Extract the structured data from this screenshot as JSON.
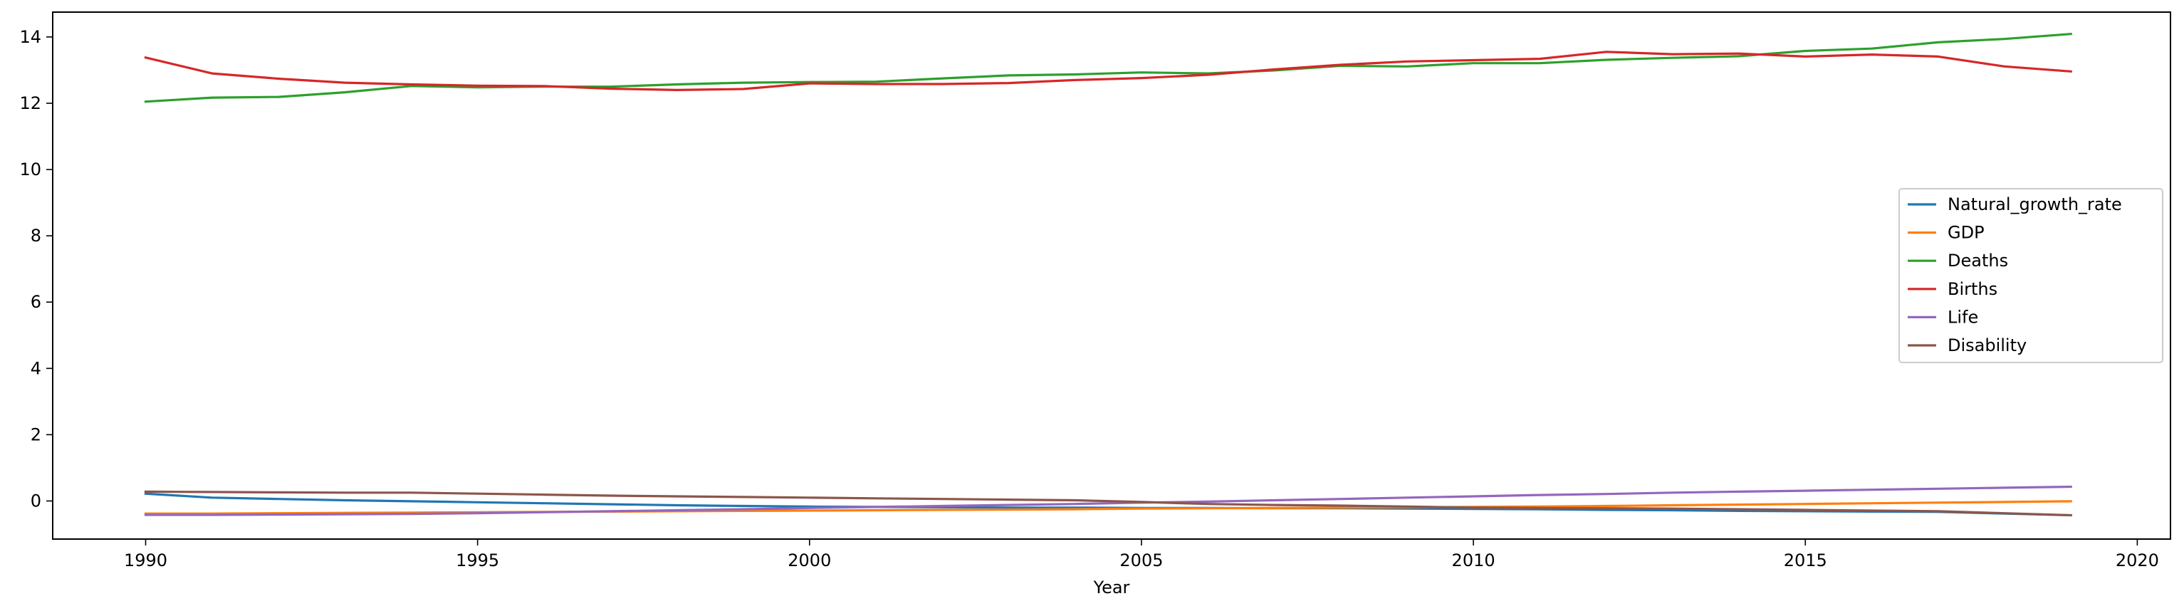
{
  "chart_data": {
    "type": "line",
    "title": "",
    "xlabel": "Year",
    "ylabel": "",
    "xlim": [
      1988.6,
      2020.5
    ],
    "ylim": [
      -1.15,
      14.75
    ],
    "xticks": [
      1990,
      1995,
      2000,
      2005,
      2010,
      2015,
      2020
    ],
    "yticks": [
      0,
      2,
      4,
      6,
      8,
      10,
      12,
      14
    ],
    "grid": false,
    "legend_position": "center-right",
    "x": [
      1990,
      1991,
      1992,
      1993,
      1994,
      1995,
      1996,
      1997,
      1998,
      1999,
      2000,
      2001,
      2002,
      2003,
      2004,
      2005,
      2006,
      2007,
      2008,
      2009,
      2010,
      2011,
      2012,
      2013,
      2014,
      2015,
      2016,
      2017,
      2018,
      2019
    ],
    "series": [
      {
        "name": "Natural_growth_rate",
        "color": "#1f77b4",
        "values": [
          0.22,
          0.1,
          0.06,
          0.02,
          -0.01,
          -0.04,
          -0.07,
          -0.1,
          -0.13,
          -0.15,
          -0.17,
          -0.18,
          -0.19,
          -0.2,
          -0.2,
          -0.21,
          -0.21,
          -0.22,
          -0.22,
          -0.23,
          -0.24,
          -0.25,
          -0.27,
          -0.28,
          -0.3,
          -0.31,
          -0.32,
          -0.33,
          -0.38,
          -0.43
        ]
      },
      {
        "name": "GDP",
        "color": "#ff7f0e",
        "values": [
          -0.38,
          -0.38,
          -0.37,
          -0.36,
          -0.35,
          -0.34,
          -0.33,
          -0.32,
          -0.31,
          -0.3,
          -0.29,
          -0.28,
          -0.27,
          -0.26,
          -0.25,
          -0.23,
          -0.22,
          -0.21,
          -0.2,
          -0.19,
          -0.18,
          -0.17,
          -0.15,
          -0.13,
          -0.11,
          -0.09,
          -0.07,
          -0.05,
          -0.03,
          -0.01
        ]
      },
      {
        "name": "Deaths",
        "color": "#2ca02c",
        "values": [
          12.05,
          12.17,
          12.19,
          12.33,
          12.52,
          12.48,
          12.5,
          12.5,
          12.57,
          12.62,
          12.64,
          12.65,
          12.75,
          12.84,
          12.87,
          12.93,
          12.9,
          12.99,
          13.13,
          13.11,
          13.21,
          13.21,
          13.31,
          13.37,
          13.42,
          13.58,
          13.65,
          13.84,
          13.94,
          14.09
        ]
      },
      {
        "name": "Births",
        "color": "#d62728",
        "values": [
          13.38,
          12.9,
          12.74,
          12.62,
          12.57,
          12.53,
          12.52,
          12.44,
          12.4,
          12.43,
          12.6,
          12.58,
          12.58,
          12.61,
          12.7,
          12.76,
          12.86,
          13.02,
          13.16,
          13.26,
          13.3,
          13.34,
          13.55,
          13.48,
          13.5,
          13.41,
          13.47,
          13.41,
          13.11,
          12.96
        ]
      },
      {
        "name": "Life",
        "color": "#9467bd",
        "values": [
          -0.42,
          -0.42,
          -0.41,
          -0.4,
          -0.39,
          -0.37,
          -0.34,
          -0.31,
          -0.28,
          -0.25,
          -0.21,
          -0.18,
          -0.15,
          -0.12,
          -0.09,
          -0.05,
          -0.02,
          0.02,
          0.06,
          0.1,
          0.14,
          0.18,
          0.21,
          0.25,
          0.28,
          0.31,
          0.34,
          0.37,
          0.4,
          0.43
        ]
      },
      {
        "name": "Disability",
        "color": "#8c564b",
        "values": [
          0.28,
          0.27,
          0.26,
          0.25,
          0.25,
          0.22,
          0.19,
          0.16,
          0.14,
          0.12,
          0.1,
          0.08,
          0.06,
          0.04,
          0.02,
          -0.03,
          -0.09,
          -0.12,
          -0.14,
          -0.17,
          -0.2,
          -0.21,
          -0.22,
          -0.23,
          -0.25,
          -0.27,
          -0.29,
          -0.31,
          -0.37,
          -0.43
        ]
      }
    ]
  }
}
